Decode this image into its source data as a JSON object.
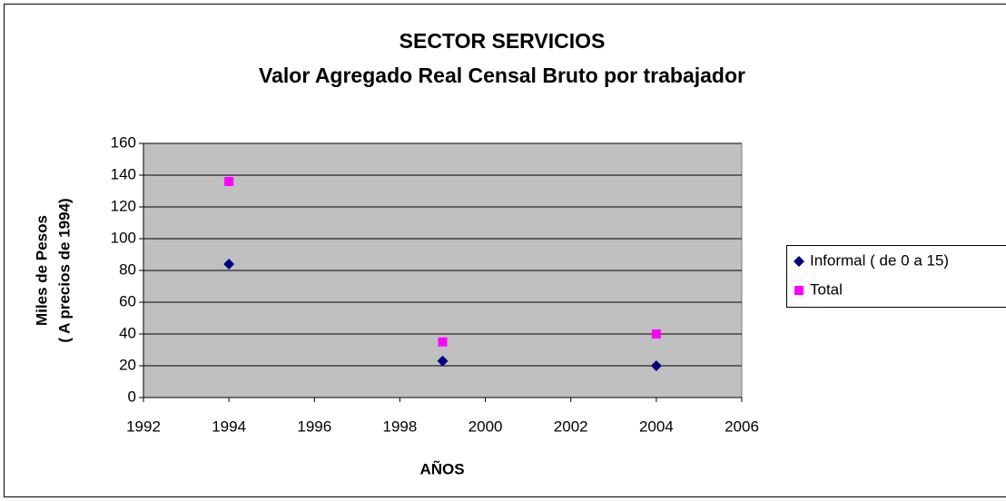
{
  "chart_data": {
    "type": "scatter",
    "title": "SECTOR SERVICIOS",
    "subtitle": "Valor Agregado  Real Censal Bruto por trabajador",
    "xlabel": "AÑOS",
    "ylabel": [
      "Miles de Pesos",
      "( A precios de 1994)"
    ],
    "series": [
      {
        "name": "Informal ( de 0 a 15)",
        "color": "#000080",
        "marker": "diamond",
        "x": [
          1994,
          1999,
          2004
        ],
        "values": [
          84,
          23,
          20
        ]
      },
      {
        "name": "Total",
        "color": "#ff00ff",
        "marker": "square",
        "x": [
          1994,
          1999,
          2004
        ],
        "values": [
          136,
          35,
          40
        ]
      }
    ],
    "xlim": [
      1992,
      2006
    ],
    "xticks": [
      1992,
      1994,
      1996,
      1998,
      2000,
      2002,
      2004,
      2006
    ],
    "ylim": [
      0,
      160
    ],
    "yticks": [
      0,
      20,
      40,
      60,
      80,
      100,
      120,
      140,
      160
    ],
    "grid": true,
    "plot_background": "#c0c0c0",
    "legend": "right"
  }
}
